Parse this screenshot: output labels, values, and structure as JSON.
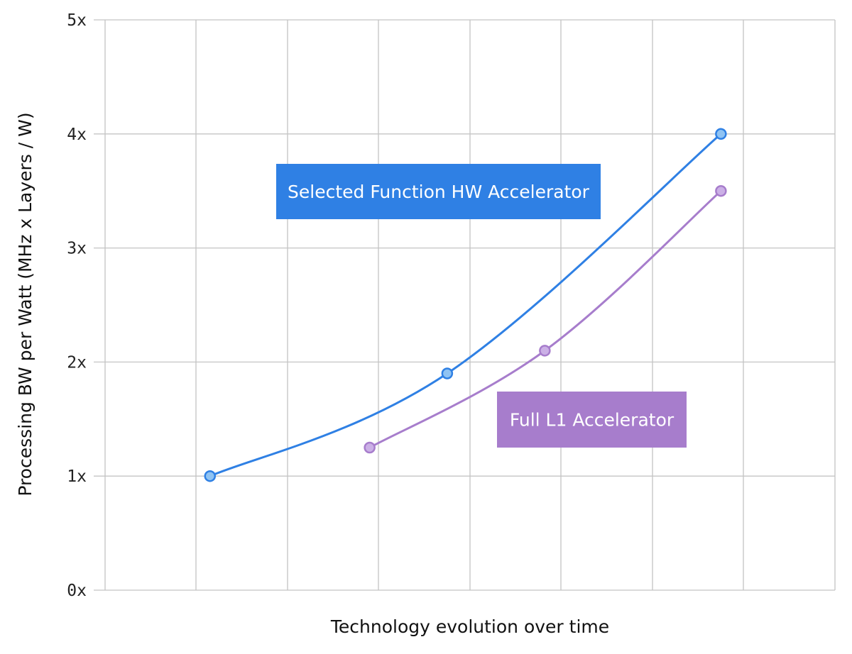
{
  "chart_data": {
    "type": "line",
    "title": "",
    "xlabel": "Technology evolution over time",
    "ylabel": "Processing BW per Watt (MHz x Layers / W)",
    "x_ticks_labeled": false,
    "ylim": [
      0,
      5
    ],
    "xlim": [
      0,
      8
    ],
    "y_ticks": [
      0,
      1,
      2,
      3,
      4,
      5
    ],
    "y_tick_labels": [
      "0x",
      "1x",
      "2x",
      "3x",
      "4x",
      "5x"
    ],
    "grid": true,
    "legend": "none",
    "series": [
      {
        "name": "Selected Function HW Accelerator",
        "color": "#2f80e4",
        "marker_fill": "#8fc3f3",
        "points": [
          {
            "x": 1.15,
            "y": 1.0
          },
          {
            "x": 3.75,
            "y": 1.9
          },
          {
            "x": 6.75,
            "y": 4.0
          }
        ],
        "label_fill": "#2f80e4",
        "label_fg": "#ffffff"
      },
      {
        "name": "Full L1 Accelerator",
        "color": "#a77dcc",
        "marker_fill": "#cbb0e6",
        "points": [
          {
            "x": 2.9,
            "y": 1.25
          },
          {
            "x": 4.82,
            "y": 2.1
          },
          {
            "x": 6.75,
            "y": 3.5
          }
        ],
        "label_fill": "#a77dcc",
        "label_fg": "#ffffff"
      }
    ]
  }
}
